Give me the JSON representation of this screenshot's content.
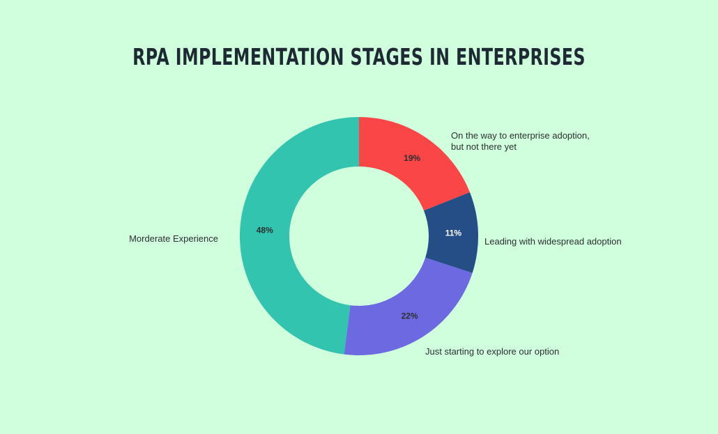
{
  "chart_data": {
    "type": "pie",
    "title": "RPA IMPLEMENTATION STAGES IN ENTERPRISES",
    "slices": [
      {
        "label": [
          "On the way to enterprise adoption,",
          "but not there yet"
        ],
        "value": 19,
        "value_label": "19%",
        "color": "#fa4646",
        "value_label_color": "#2b2f33"
      },
      {
        "label": [
          "Leading with widespread adoption"
        ],
        "value": 11,
        "value_label": "11%",
        "color": "#254e87",
        "value_label_color": "#ffffff"
      },
      {
        "label": [
          "Just starting to explore our option"
        ],
        "value": 22,
        "value_label": "22%",
        "color": "#6c69e1",
        "value_label_color": "#2b2f33"
      },
      {
        "label": [
          "Morderate Experience"
        ],
        "value": 48,
        "value_label": "48%",
        "color": "#32c4ae",
        "value_label_color": "#2b2f33"
      }
    ],
    "hole": true,
    "legend": "none"
  }
}
